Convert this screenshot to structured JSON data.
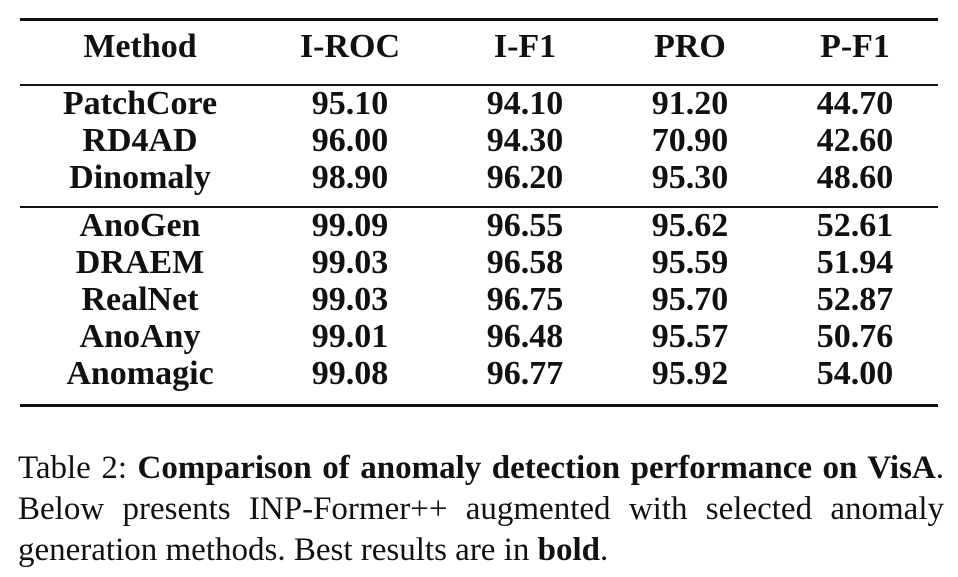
{
  "table": {
    "header": [
      "Method",
      "I-ROC",
      "I-F1",
      "PRO",
      "P-F1"
    ],
    "groups": [
      {
        "rows": [
          [
            "PatchCore",
            "95.10",
            "94.10",
            "91.20",
            "44.70"
          ],
          [
            "RD4AD",
            "96.00",
            "94.30",
            "70.90",
            "42.60"
          ],
          [
            "Dinomaly",
            "98.90",
            "96.20",
            "95.30",
            "48.60"
          ]
        ]
      },
      {
        "rows": [
          [
            "AnoGen",
            {
              "text": "99.09",
              "bold": true
            },
            "96.55",
            "95.62",
            "52.61"
          ],
          [
            "DRAEM",
            "99.03",
            "96.58",
            "95.59",
            "51.94"
          ],
          [
            "RealNet",
            "99.03",
            "96.75",
            "95.70",
            "52.87"
          ],
          [
            "AnoAny",
            "99.01",
            "96.48",
            "95.57",
            "50.76"
          ],
          [
            "Anomagic",
            "99.08",
            {
              "text": "96.77",
              "bold": true
            },
            {
              "text": "95.92",
              "bold": true
            },
            {
              "text": "54.00",
              "bold": true
            }
          ]
        ]
      }
    ]
  },
  "caption": [
    {
      "text": "Table 2: "
    },
    {
      "text": "Comparison of anomaly detection performance on VisA",
      "bold": true
    },
    {
      "text": ". Below presents INP-Former++ augmented with selected anomaly generation methods. Best results are in "
    },
    {
      "text": "bold",
      "bold": true
    },
    {
      "text": "."
    }
  ]
}
